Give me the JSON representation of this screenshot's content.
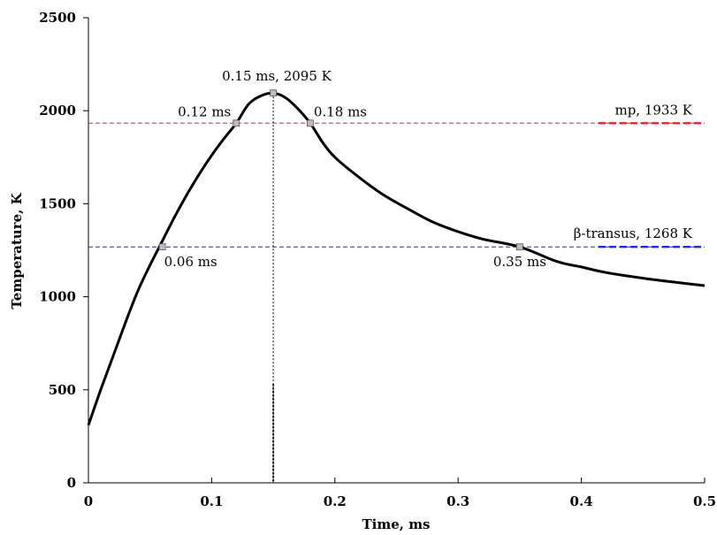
{
  "chart_data": {
    "type": "line",
    "xlabel": "Time, ms",
    "ylabel": "Temperature, K",
    "xlim": [
      0,
      0.5
    ],
    "ylim": [
      0,
      2500
    ],
    "x_ticks": [
      "0",
      "0.1",
      "0.2",
      "0.3",
      "0.4",
      "0.5"
    ],
    "y_ticks": [
      "0",
      "500",
      "1000",
      "1500",
      "2000",
      "2500"
    ],
    "grid": false,
    "series": [
      {
        "color": "#000000",
        "x": [
          0,
          0.01,
          0.02,
          0.03,
          0.04,
          0.05,
          0.06,
          0.07,
          0.08,
          0.09,
          0.1,
          0.11,
          0.12,
          0.13,
          0.14,
          0.15,
          0.16,
          0.17,
          0.18,
          0.19,
          0.2,
          0.22,
          0.24,
          0.26,
          0.28,
          0.3,
          0.32,
          0.35,
          0.38,
          0.4,
          0.42,
          0.45,
          0.48,
          0.5
        ],
        "y": [
          310,
          500,
          680,
          860,
          1030,
          1170,
          1300,
          1430,
          1550,
          1660,
          1760,
          1850,
          1933,
          2035,
          2080,
          2095,
          2070,
          2010,
          1933,
          1830,
          1750,
          1640,
          1545,
          1470,
          1400,
          1350,
          1310,
          1268,
          1190,
          1160,
          1130,
          1100,
          1075,
          1060
        ]
      }
    ],
    "reference_lines": [
      {
        "label": "mp, 1933 K",
        "y": 1933,
        "color": "#e8212d"
      },
      {
        "label": "β-transus, 1268 K",
        "y": 1268,
        "color": "#1f2ad8"
      }
    ],
    "vertical_line": {
      "x": 0.15,
      "color": "#000000"
    },
    "markers": [
      {
        "x": 0.06,
        "y": 1268,
        "label": "0.06 ms"
      },
      {
        "x": 0.12,
        "y": 1933,
        "label": "0.12 ms"
      },
      {
        "x": 0.15,
        "y": 2095,
        "label": "0.15 ms, 2095 K"
      },
      {
        "x": 0.18,
        "y": 1933,
        "label": "0.18 ms"
      },
      {
        "x": 0.35,
        "y": 1268,
        "label": "0.35 ms"
      }
    ]
  }
}
